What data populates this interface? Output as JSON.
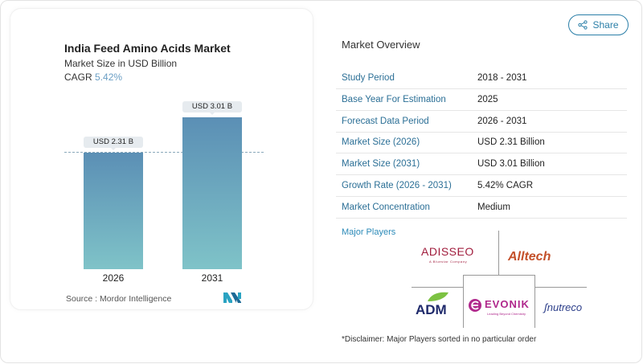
{
  "share_label": "Share",
  "icons": {
    "share": "share-icon",
    "brand": "mordor-intelligence-logo"
  },
  "chart": {
    "title": "India Feed Amino Acids Market",
    "subtitle": "Market Size in USD Billion",
    "cagr_label": "CAGR",
    "cagr_value": "5.42%",
    "source": "Source :  Mordor Intelligence"
  },
  "chart_data": {
    "type": "bar",
    "title": "India Feed Amino Acids Market",
    "ylabel": "Market Size in USD Billion",
    "categories": [
      "2026",
      "2031"
    ],
    "values": [
      2.31,
      3.01
    ],
    "data_labels": [
      "USD 2.31 B",
      "USD 3.01 B"
    ],
    "colors": {
      "bar_top": "#5b8fb5",
      "bar_bottom": "#7fc3c8"
    },
    "grid": false,
    "reference_line": "dashed at 2026 value"
  },
  "overview": {
    "title": "Market Overview",
    "rows": [
      {
        "label": "Study Period",
        "value": "2018 - 2031"
      },
      {
        "label": "Base Year For Estimation",
        "value": "2025"
      },
      {
        "label": "Forecast Data Period",
        "value": "2026 - 2031"
      },
      {
        "label": "Market Size (2026)",
        "value": "USD 2.31 Billion"
      },
      {
        "label": "Market Size (2031)",
        "value": "USD 3.01 Billion"
      },
      {
        "label": "Growth Rate (2026 - 2031)",
        "value": "5.42% CAGR"
      },
      {
        "label": "Market Concentration",
        "value": "Medium"
      }
    ]
  },
  "players": {
    "title": "Major Players",
    "logos": [
      "ADISSEO",
      "Alltech",
      "ADM",
      "EVONIK",
      "nutreco"
    ],
    "adisseo_tag": "A Bluestar Company",
    "evonik_tag": "Leading Beyond Chemistry",
    "disclaimer": "*Disclaimer: Major Players sorted in no particular order"
  }
}
